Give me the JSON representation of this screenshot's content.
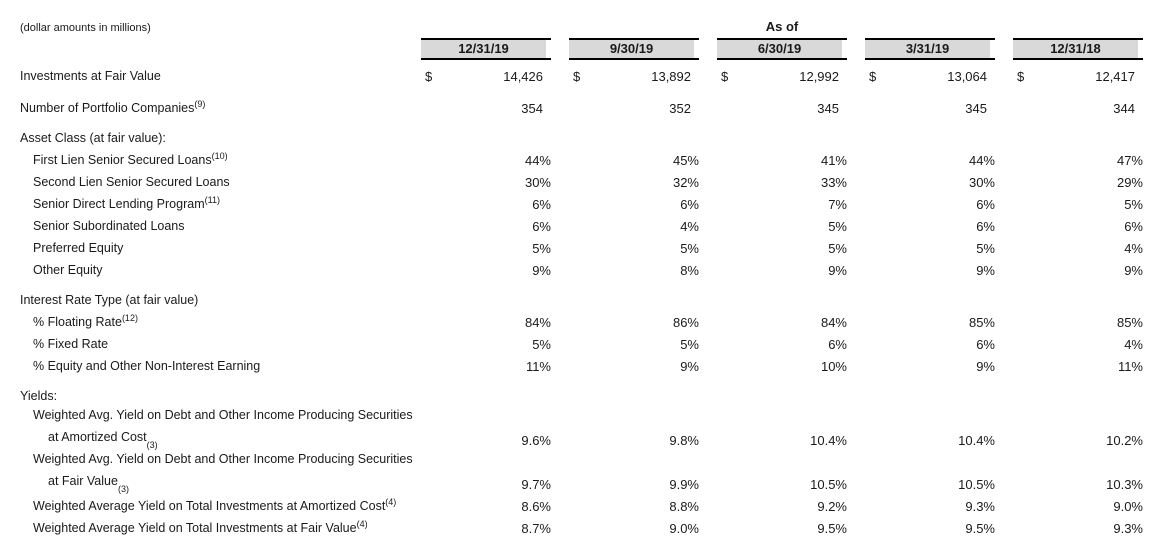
{
  "note": "(dollar amounts in millions)",
  "header": {
    "as_of": "As of",
    "dates": [
      "12/31/19",
      "9/30/19",
      "6/30/19",
      "3/31/19",
      "12/31/18"
    ]
  },
  "colors": {
    "header_fill": "#d9d9d9",
    "border": "#000000",
    "text": "#1a1a1a"
  },
  "table": {
    "rows": [
      {
        "style": "top",
        "label": "Investments at Fair Value",
        "dollar": true,
        "pad": true,
        "values": [
          "14,426",
          "13,892",
          "12,992",
          "13,064",
          "12,417"
        ]
      },
      {
        "style": "top",
        "label": "Number of Portfolio Companies",
        "sup": "(9)",
        "pad": true,
        "values": [
          "354",
          "352",
          "345",
          "345",
          "344"
        ]
      },
      {
        "style": "section",
        "label": "Asset Class (at fair value):"
      },
      {
        "style": "sub",
        "label": "First Lien Senior Secured Loans",
        "sup": "(10)",
        "values": [
          "44%",
          "45%",
          "41%",
          "44%",
          "47%"
        ]
      },
      {
        "style": "sub",
        "label": "Second Lien Senior Secured Loans",
        "values": [
          "30%",
          "32%",
          "33%",
          "30%",
          "29%"
        ]
      },
      {
        "style": "sub",
        "label": "Senior Direct Lending Program",
        "sup": "(11)",
        "values": [
          "6%",
          "6%",
          "7%",
          "6%",
          "5%"
        ]
      },
      {
        "style": "sub",
        "label": "Senior Subordinated Loans",
        "values": [
          "6%",
          "4%",
          "5%",
          "6%",
          "6%"
        ]
      },
      {
        "style": "sub",
        "label": "Preferred Equity",
        "values": [
          "5%",
          "5%",
          "5%",
          "5%",
          "4%"
        ]
      },
      {
        "style": "sub",
        "label": "Other Equity",
        "values": [
          "9%",
          "8%",
          "9%",
          "9%",
          "9%"
        ]
      },
      {
        "style": "section",
        "label": "Interest Rate Type (at fair value)"
      },
      {
        "style": "sub",
        "label": "% Floating Rate",
        "sup": "(12)",
        "values": [
          "84%",
          "86%",
          "84%",
          "85%",
          "85%"
        ]
      },
      {
        "style": "sub",
        "label": "% Fixed Rate",
        "values": [
          "5%",
          "5%",
          "6%",
          "6%",
          "4%"
        ]
      },
      {
        "style": "sub",
        "label": "% Equity and Other Non-Interest Earning",
        "values": [
          "11%",
          "9%",
          "10%",
          "9%",
          "11%"
        ]
      },
      {
        "style": "section",
        "label": "Yields:"
      },
      {
        "style": "two",
        "label": "Weighted Avg. Yield on Debt and Other Income Producing Securities",
        "label2": "at Amortized Cost",
        "sup": "(3)",
        "values": [
          "9.6%",
          "9.8%",
          "10.4%",
          "10.4%",
          "10.2%"
        ]
      },
      {
        "style": "two",
        "label": "Weighted Avg. Yield on Debt and Other Income Producing Securities",
        "label2": "at Fair Value",
        "sup": "(3)",
        "values": [
          "9.7%",
          "9.9%",
          "10.5%",
          "10.5%",
          "10.3%"
        ]
      },
      {
        "style": "sub",
        "label": "Weighted Average Yield on Total Investments at Amortized Cost",
        "sup": "(4)",
        "values": [
          "8.6%",
          "8.8%",
          "9.2%",
          "9.3%",
          "9.0%"
        ]
      },
      {
        "style": "sub",
        "label": "Weighted Average Yield on Total Investments at Fair Value",
        "sup": "(4)",
        "values": [
          "8.7%",
          "9.0%",
          "9.5%",
          "9.5%",
          "9.3%"
        ]
      }
    ]
  }
}
